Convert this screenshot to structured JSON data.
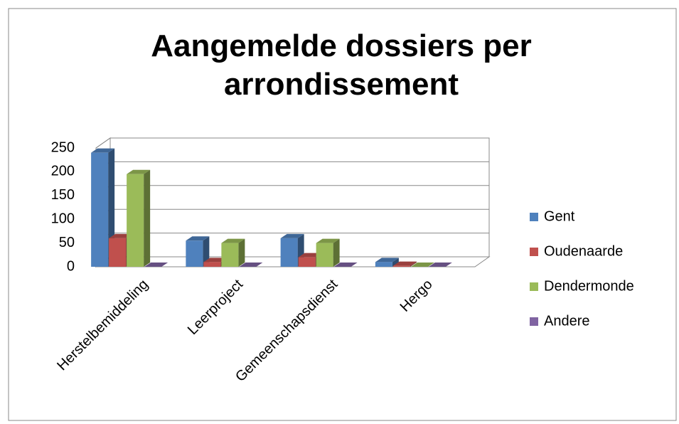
{
  "chart_data": {
    "type": "bar3d",
    "title": "Aangemelde dossiers per arrondissement",
    "categories": [
      "Herstelbemiddeling",
      "Leerproject",
      "Gemeenschapsdienst",
      "Hergo"
    ],
    "series": [
      {
        "name": "Gent",
        "color": "#4f81bd",
        "values": [
          240,
          55,
          60,
          10
        ]
      },
      {
        "name": "Oudenaarde",
        "color": "#c0504d",
        "values": [
          60,
          10,
          20,
          2
        ]
      },
      {
        "name": "Dendermonde",
        "color": "#9bbb59",
        "values": [
          195,
          50,
          50,
          0
        ]
      },
      {
        "name": "Andere",
        "color": "#8064a2",
        "values": [
          0,
          0,
          0,
          0
        ]
      }
    ],
    "ylim": [
      0,
      250
    ],
    "yticks": [
      0,
      50,
      100,
      150,
      200,
      250
    ],
    "grid": true,
    "legend": "right"
  }
}
